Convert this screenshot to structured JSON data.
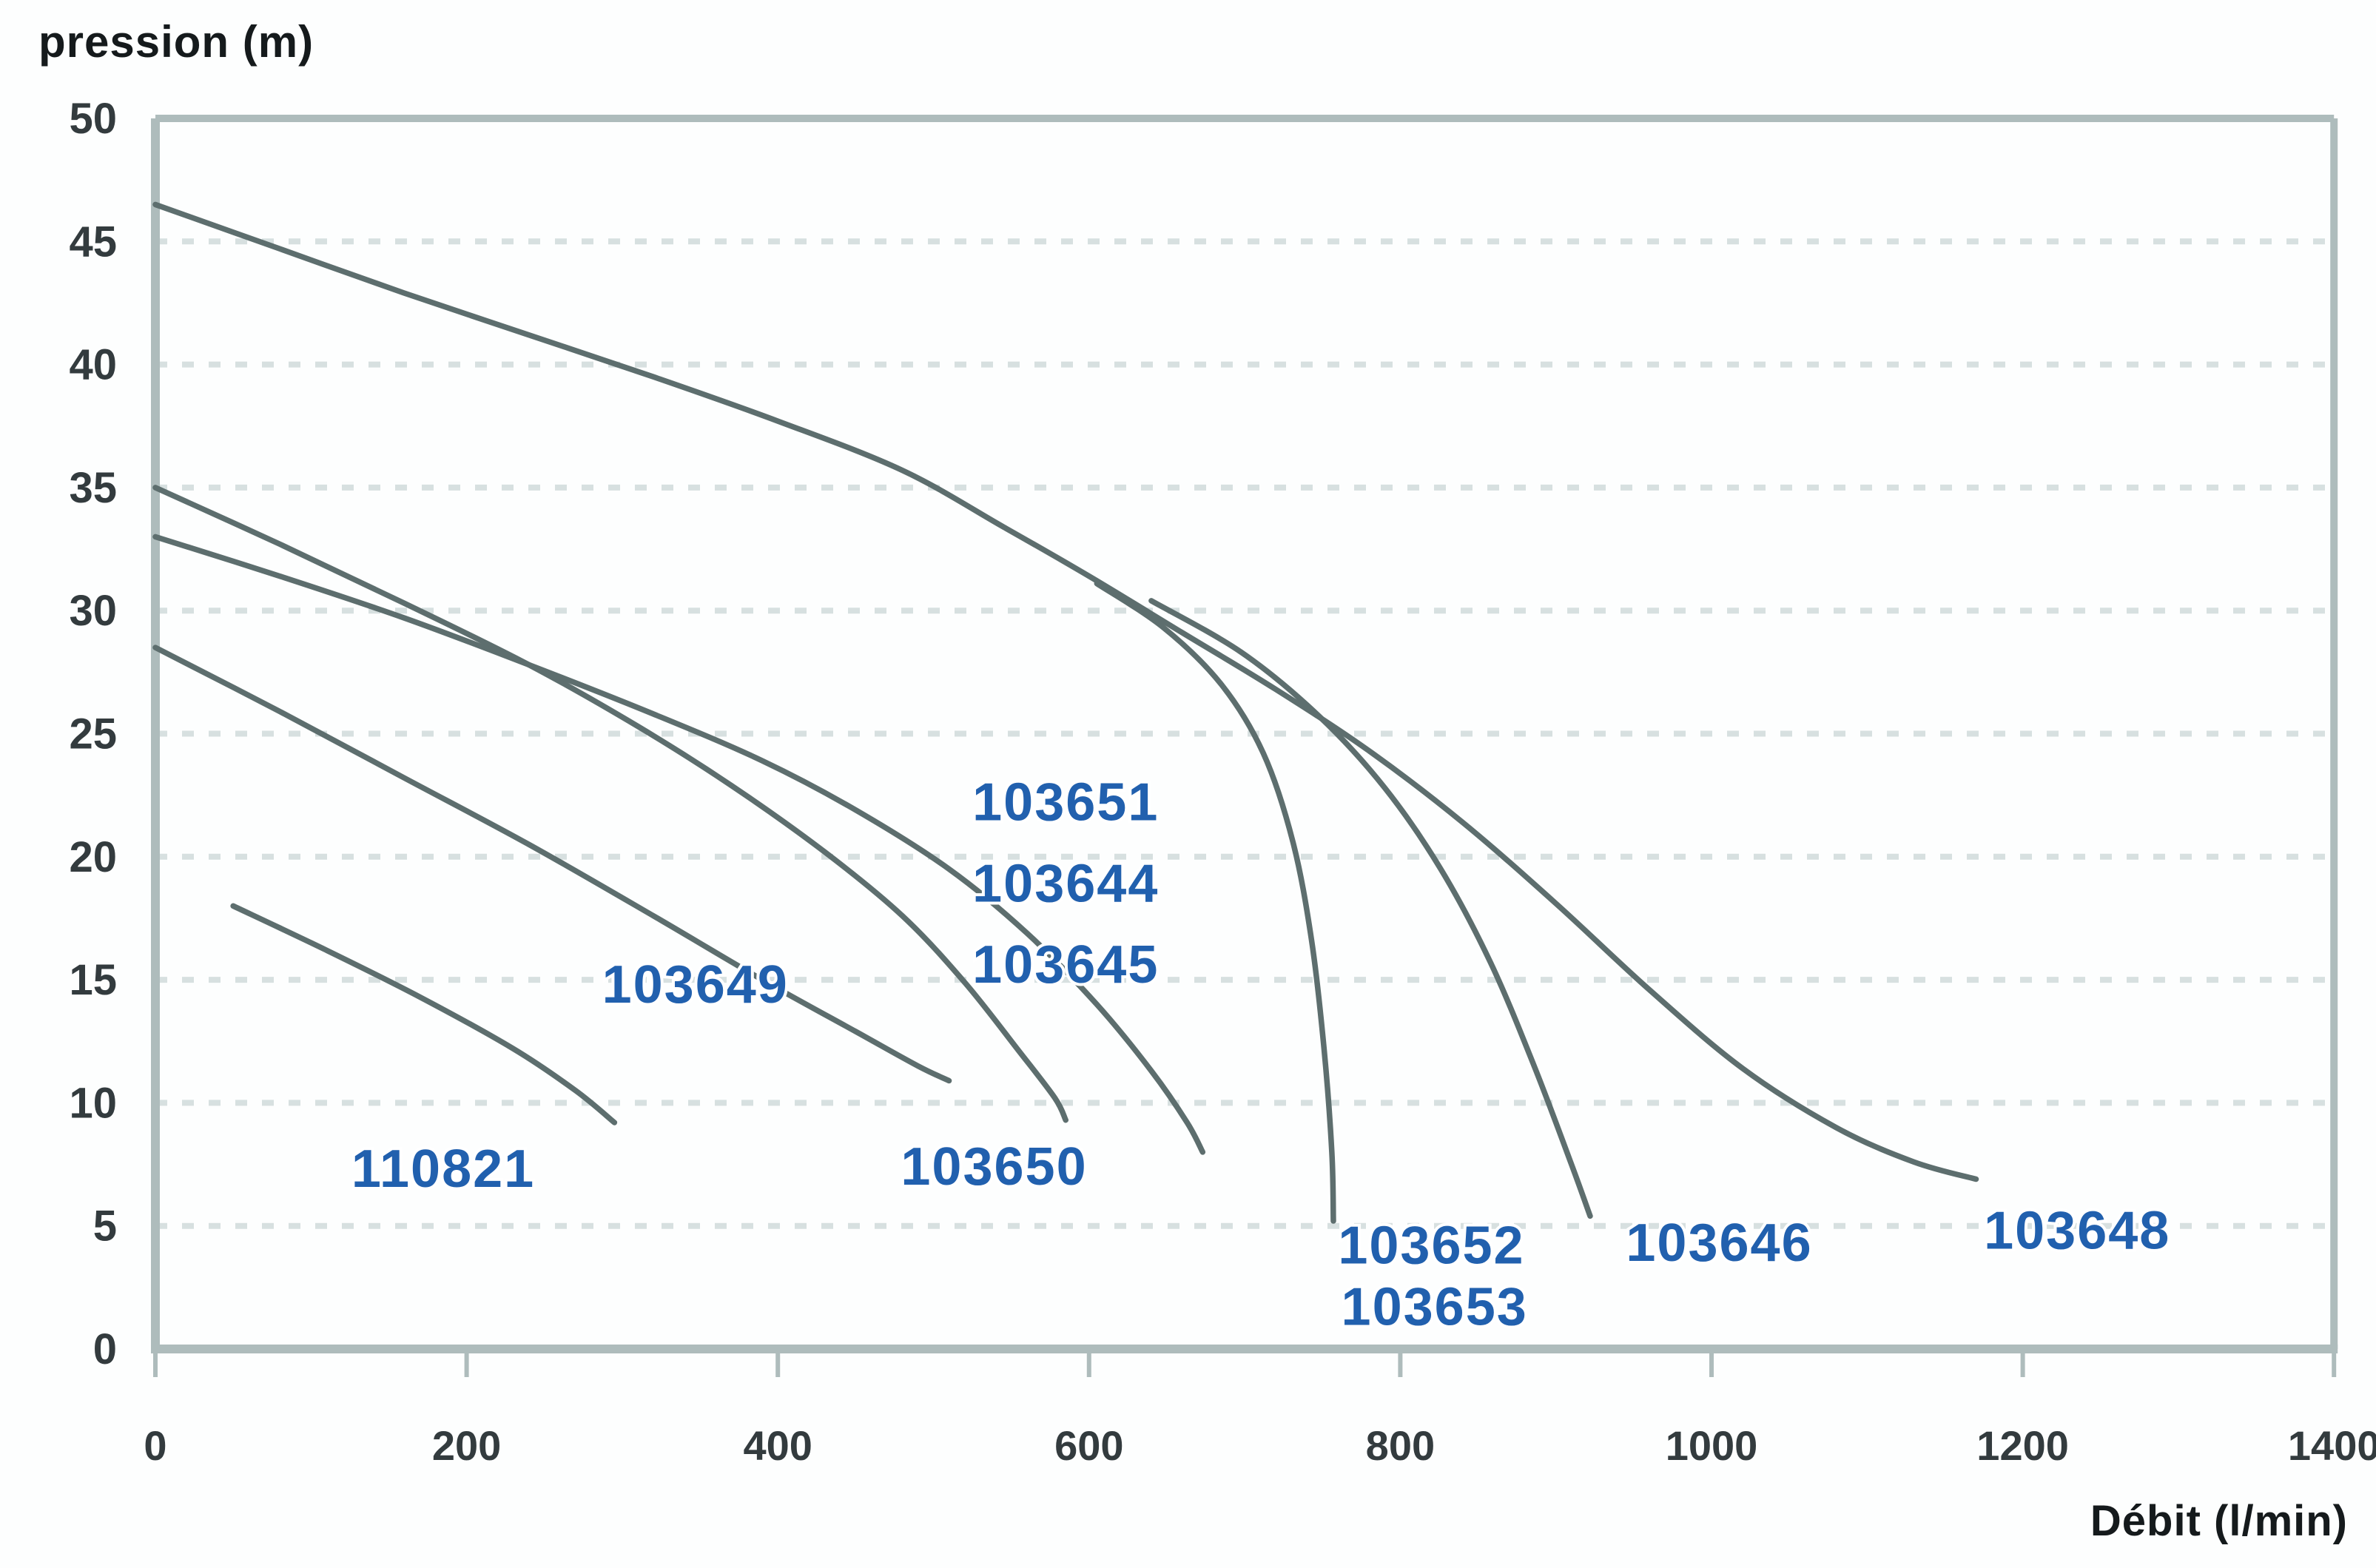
{
  "chart_data": {
    "type": "line",
    "title": "pression (m)",
    "xlabel": "Débit (l/min)",
    "ylabel": "pression (m)",
    "xlim": [
      0,
      1400
    ],
    "ylim": [
      0,
      50
    ],
    "x_ticks": [
      0,
      200,
      400,
      600,
      800,
      1000,
      1200,
      1400
    ],
    "y_ticks": [
      0,
      5,
      10,
      15,
      20,
      25,
      30,
      35,
      40,
      45,
      50
    ],
    "grid": "horizontal-dashed",
    "legend_position": "inline-blue-labels-at-curve-ends",
    "series": [
      {
        "name": "110821",
        "points": [
          [
            50,
            18
          ],
          [
            110,
            16.2
          ],
          [
            170,
            14.3
          ],
          [
            230,
            12.2
          ],
          [
            270,
            10.5
          ],
          [
            295,
            9.2
          ]
        ]
      },
      {
        "name": "103649",
        "points": [
          [
            0,
            28.5
          ],
          [
            80,
            25.9
          ],
          [
            160,
            23.2
          ],
          [
            240,
            20.5
          ],
          [
            320,
            17.6
          ],
          [
            390,
            15.0
          ],
          [
            450,
            12.9
          ],
          [
            490,
            11.5
          ],
          [
            510,
            10.9
          ]
        ]
      },
      {
        "name": "103650",
        "points": [
          [
            0,
            35
          ],
          [
            80,
            32.7
          ],
          [
            160,
            30.3
          ],
          [
            240,
            27.8
          ],
          [
            310,
            25.3
          ],
          [
            370,
            22.9
          ],
          [
            430,
            20.2
          ],
          [
            480,
            17.6
          ],
          [
            520,
            14.9
          ],
          [
            555,
            12.1
          ],
          [
            578,
            10.2
          ],
          [
            585,
            9.3
          ]
        ]
      },
      {
        "name": "103651/103644/103645",
        "points": [
          [
            0,
            33
          ],
          [
            80,
            31.4
          ],
          [
            160,
            29.7
          ],
          [
            240,
            27.8
          ],
          [
            320,
            25.8
          ],
          [
            390,
            23.9
          ],
          [
            450,
            21.9
          ],
          [
            510,
            19.5
          ],
          [
            560,
            16.9
          ],
          [
            605,
            14.0
          ],
          [
            640,
            11.3
          ],
          [
            663,
            9.2
          ],
          [
            673,
            8.0
          ]
        ]
      },
      {
        "name": "103652/103653",
        "points": [
          [
            605,
            31.1
          ],
          [
            648,
            29.3
          ],
          [
            685,
            27.0
          ],
          [
            712,
            24.2
          ],
          [
            731,
            20.6
          ],
          [
            743,
            16.6
          ],
          [
            751,
            12.2
          ],
          [
            756,
            8.0
          ],
          [
            757,
            5.2
          ]
        ]
      },
      {
        "name": "103646",
        "points": [
          [
            640,
            30.4
          ],
          [
            698,
            28.3
          ],
          [
            748,
            25.7
          ],
          [
            790,
            22.8
          ],
          [
            826,
            19.5
          ],
          [
            858,
            15.7
          ],
          [
            886,
            11.5
          ],
          [
            910,
            7.5
          ],
          [
            922,
            5.4
          ]
        ]
      },
      {
        "name": "103648",
        "points": [
          [
            0,
            46.5
          ],
          [
            80,
            44.7
          ],
          [
            160,
            42.9
          ],
          [
            240,
            41.2
          ],
          [
            320,
            39.5
          ],
          [
            400,
            37.7
          ],
          [
            480,
            35.7
          ],
          [
            545,
            33.4
          ],
          [
            600,
            31.4
          ],
          [
            660,
            29.1
          ],
          [
            720,
            26.8
          ],
          [
            780,
            24.3
          ],
          [
            840,
            21.4
          ],
          [
            900,
            18.1
          ],
          [
            960,
            14.6
          ],
          [
            1020,
            11.4
          ],
          [
            1080,
            9.0
          ],
          [
            1130,
            7.6
          ],
          [
            1170,
            6.9
          ]
        ]
      }
    ],
    "labels": [
      {
        "text": "110821",
        "x": 185,
        "y": 7.3
      },
      {
        "text": "103649",
        "x": 347,
        "y": 14.8
      },
      {
        "text": "103650",
        "x": 539,
        "y": 7.4
      },
      {
        "text": "103651",
        "x": 585,
        "y": 22.2
      },
      {
        "text": "103644",
        "x": 585,
        "y": 18.9
      },
      {
        "text": "103645",
        "x": 585,
        "y": 15.6
      },
      {
        "text": "103652",
        "x": 820,
        "y": 4.2
      },
      {
        "text": "103653",
        "x": 822,
        "y": 1.7
      },
      {
        "text": "103646",
        "x": 1005,
        "y": 4.3
      },
      {
        "text": "103648",
        "x": 1235,
        "y": 4.8
      }
    ],
    "colors": {
      "curve": "#5d6e6e",
      "grid": "#d7e0e0",
      "axis": "#aebcbc",
      "label_blue": "#2160ae",
      "tick_text": "#333b3e",
      "title_text": "#151a1c"
    }
  }
}
